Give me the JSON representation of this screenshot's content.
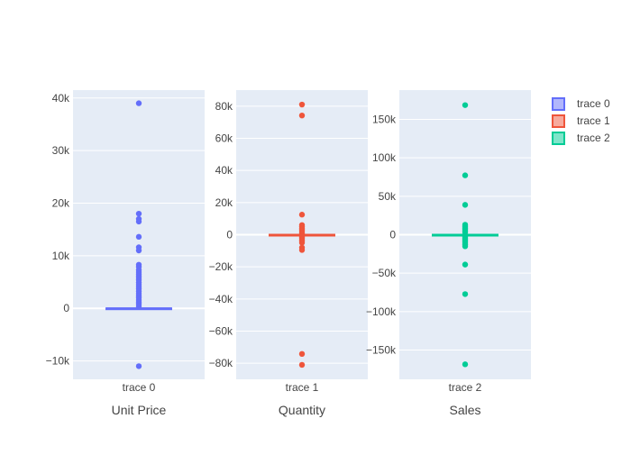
{
  "chart_data": {
    "type": "box",
    "legend": {
      "placement": "top-right",
      "entries": [
        "trace 0",
        "trace 1",
        "trace 2"
      ]
    },
    "colors": {
      "trace 0": "#636efa",
      "trace 1": "#ef553b",
      "trace 2": "#00cc96",
      "plot_bg": "#e5ecf6",
      "grid": "#ffffff",
      "text": "#444444"
    },
    "grid": true,
    "panels": [
      {
        "name": "trace 0",
        "xlabel": "Unit Price",
        "category": "trace 0",
        "ylim": [
          -13500,
          41500
        ],
        "yticks": [
          -10000,
          0,
          10000,
          20000,
          30000,
          40000
        ],
        "ytick_labels": [
          "−10k",
          "0",
          "10k",
          "20k",
          "30k",
          "40k"
        ],
        "box": {
          "q1": 0,
          "median": 0,
          "q3": 0,
          "whisker_low": 0,
          "whisker_high": 0
        },
        "outliers": [
          39000,
          18000,
          17000,
          16500,
          13600,
          11600,
          11000,
          8300,
          7900,
          7300,
          6900,
          6500,
          6100,
          5800,
          5400,
          4900,
          4500,
          4100,
          3700,
          3200,
          2800,
          2400,
          2000,
          1600,
          1200,
          800,
          400,
          -11000
        ]
      },
      {
        "name": "trace 1",
        "xlabel": "Quantity",
        "category": "trace 1",
        "ylim": [
          -90000,
          90000
        ],
        "yticks": [
          -80000,
          -60000,
          -40000,
          -20000,
          0,
          20000,
          40000,
          60000,
          80000
        ],
        "ytick_labels": [
          "−80k",
          "−60k",
          "−40k",
          "−20k",
          "0",
          "20k",
          "40k",
          "60k",
          "80k"
        ],
        "box": {
          "q1": 0,
          "median": 0,
          "q3": 0,
          "whisker_low": 0,
          "whisker_high": 0
        },
        "outliers": [
          81000,
          74200,
          12500,
          6000,
          5000,
          4000,
          3000,
          2000,
          1000,
          -1000,
          -2000,
          -3000,
          -4000,
          -5000,
          -8000,
          -9500,
          -74200,
          -81000
        ]
      },
      {
        "name": "trace 2",
        "xlabel": "Sales",
        "category": "trace 2",
        "ylim": [
          -188000,
          188000
        ],
        "yticks": [
          -150000,
          -100000,
          -50000,
          0,
          50000,
          100000,
          150000
        ],
        "ytick_labels": [
          "−150k",
          "−100k",
          "−50k",
          "0",
          "50k",
          "100k",
          "150k"
        ],
        "box": {
          "q1": 0,
          "median": 0,
          "q3": 0,
          "whisker_low": 0,
          "whisker_high": 0
        },
        "outliers": [
          168500,
          77200,
          38800,
          13000,
          11000,
          9000,
          7000,
          5000,
          3000,
          -3000,
          -5000,
          -7000,
          -9000,
          -11000,
          -13000,
          -15000,
          -38800,
          -77200,
          -168500
        ]
      }
    ]
  }
}
